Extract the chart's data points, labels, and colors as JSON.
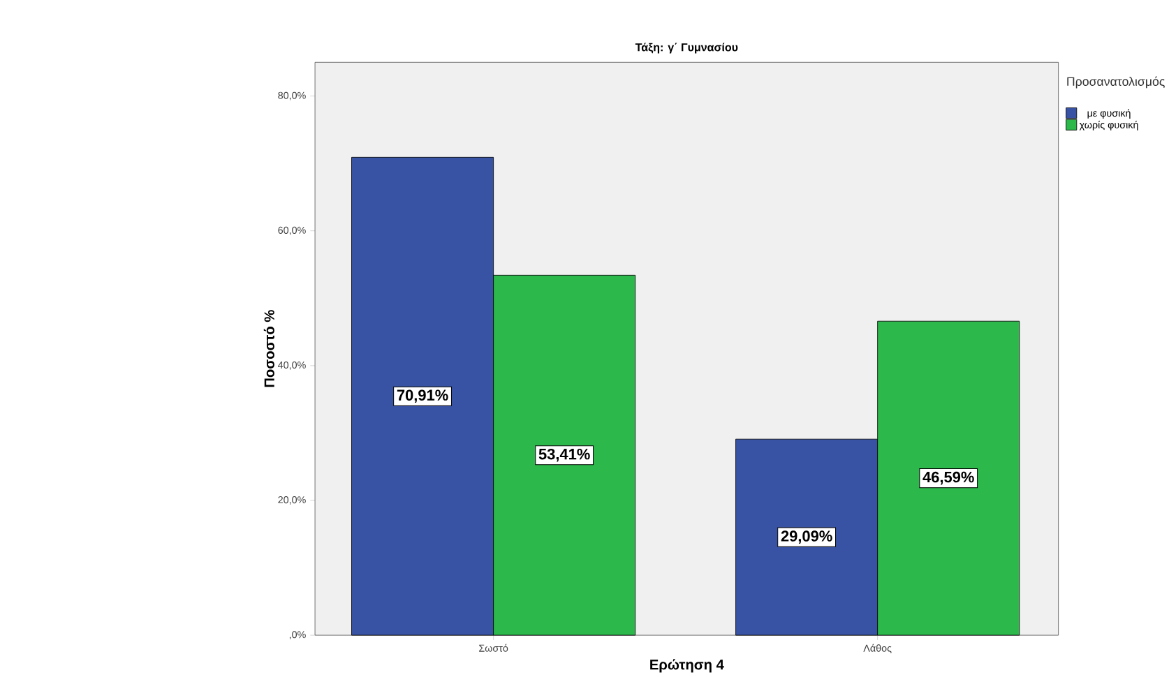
{
  "chart_data": {
    "type": "bar",
    "title": "Τάξη: γ΄ Γυμνασίου",
    "xlabel": "Ερώτηση 4",
    "ylabel": "Ποσοστό %",
    "legend_title": "Προσανατολισμός",
    "categories": [
      "Σωστό",
      "Λάθος"
    ],
    "series": [
      {
        "name": "με φυσική",
        "color": "#3953a4",
        "values": [
          70.91,
          29.09
        ],
        "value_labels": [
          "70,91%",
          "29,09%"
        ]
      },
      {
        "name": "χωρίς φυσική",
        "color": "#2db84b",
        "values": [
          53.41,
          46.59
        ],
        "value_labels": [
          "53,41%",
          "46,59%"
        ]
      }
    ],
    "ylim": [
      0,
      85
    ],
    "yticks": [
      {
        "value": 0,
        "label": ",0%"
      },
      {
        "value": 20,
        "label": "20,0%"
      },
      {
        "value": 40,
        "label": "40,0%"
      },
      {
        "value": 60,
        "label": "60,0%"
      },
      {
        "value": 80,
        "label": "80,0%"
      }
    ],
    "grid": false,
    "legend": "top right"
  }
}
